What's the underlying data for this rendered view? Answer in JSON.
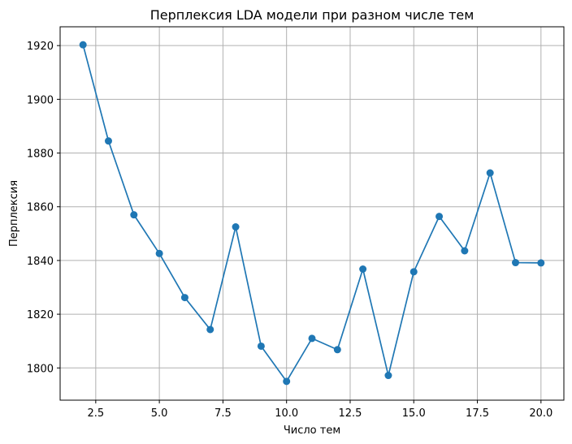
{
  "chart_data": {
    "type": "line",
    "title": "Перплексия LDA модели при разном числе тем",
    "xlabel": "Число тем",
    "ylabel": "Перплексия",
    "xlim": [
      1.1,
      20.9
    ],
    "ylim": [
      1788,
      1927
    ],
    "xticks": [
      2.5,
      5.0,
      7.5,
      10.0,
      12.5,
      15.0,
      17.5,
      20.0
    ],
    "xtick_labels": [
      "2.5",
      "5.0",
      "7.5",
      "10.0",
      "12.5",
      "15.0",
      "17.5",
      "20.0"
    ],
    "yticks": [
      1800,
      1820,
      1840,
      1860,
      1880,
      1900,
      1920
    ],
    "ytick_labels": [
      "1800",
      "1820",
      "1840",
      "1860",
      "1880",
      "1900",
      "1920"
    ],
    "grid": true,
    "marker": "circle",
    "color": "#1f77b4",
    "x": [
      2,
      3,
      4,
      5,
      6,
      7,
      8,
      9,
      10,
      11,
      12,
      13,
      14,
      15,
      16,
      17,
      18,
      19,
      20
    ],
    "series": [
      {
        "values": [
          1920.3,
          1884.5,
          1857.0,
          1842.6,
          1826.2,
          1814.3,
          1852.5,
          1808.1,
          1795.0,
          1811.0,
          1806.8,
          1836.8,
          1797.2,
          1835.8,
          1856.4,
          1843.6,
          1872.6,
          1839.2,
          1839.1
        ]
      }
    ]
  }
}
